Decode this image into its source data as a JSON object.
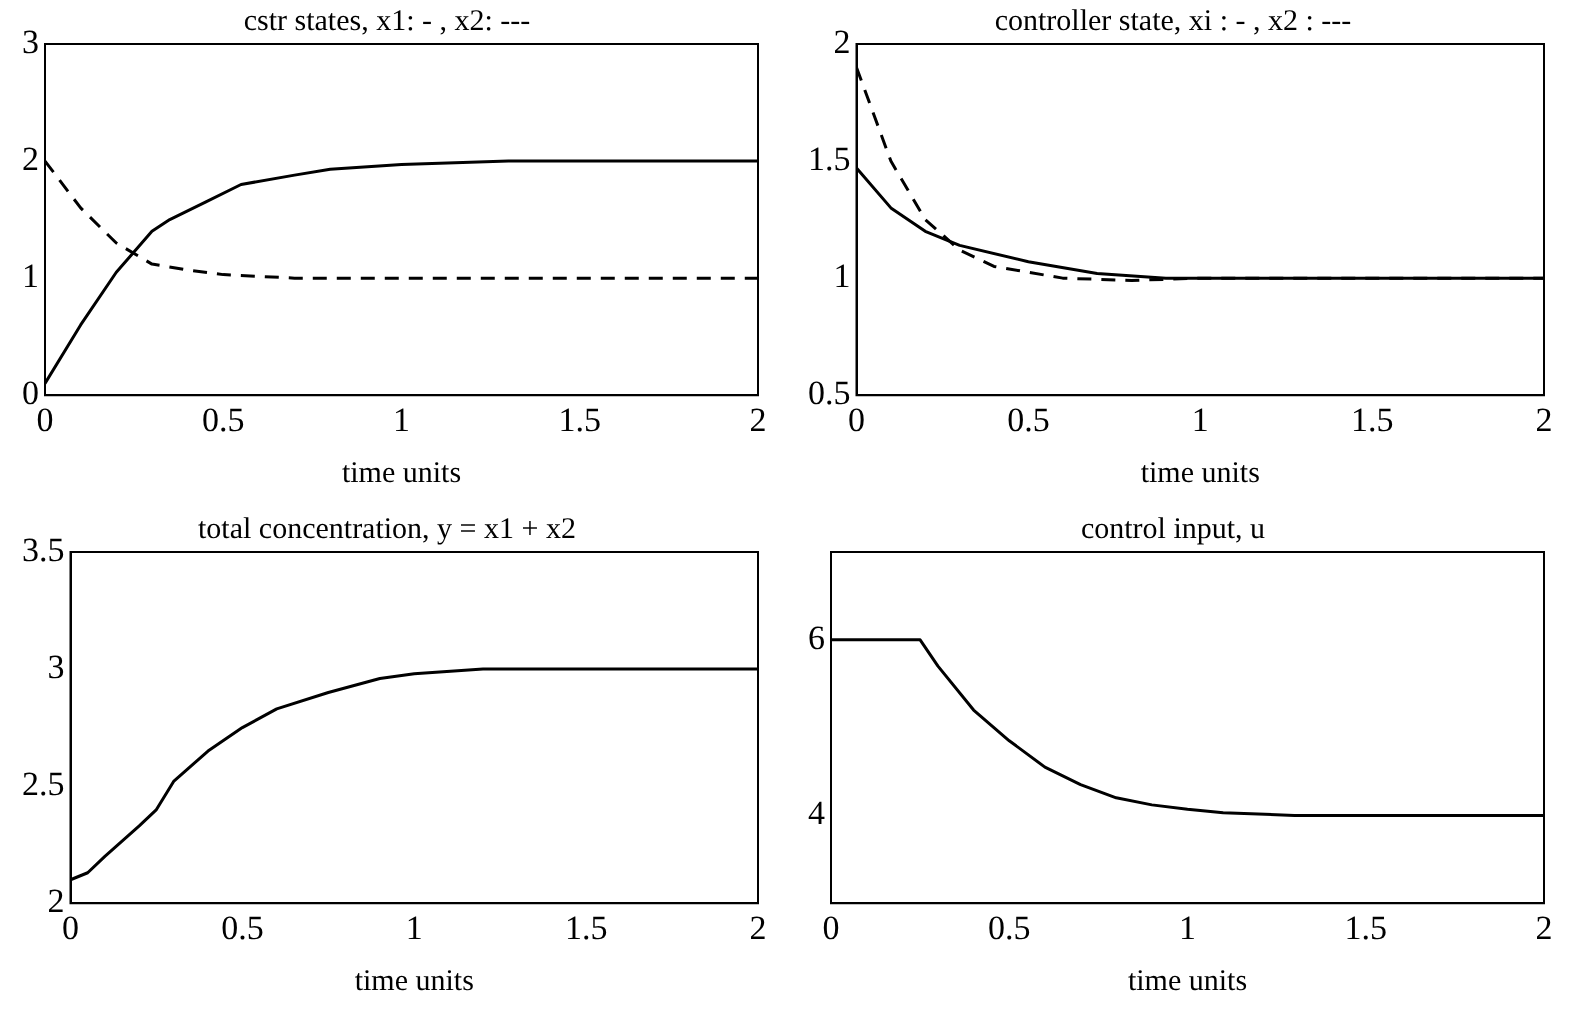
{
  "chart_data": [
    {
      "type": "line",
      "title": "cstr states, x1: - , x2: ---",
      "xlabel": "time units",
      "xlim": [
        0,
        2
      ],
      "xticks": [
        0,
        0.5,
        1,
        1.5,
        2
      ],
      "ylim": [
        0,
        3
      ],
      "yticks": [
        0,
        1,
        2,
        3
      ],
      "legend": false,
      "grid": false,
      "marker": "none",
      "series": [
        {
          "color": "#000000",
          "line_style": "solid",
          "x": [
            0,
            0.1,
            0.2,
            0.3,
            0.35,
            0.45,
            0.55,
            0.7,
            0.8,
            1,
            1.3,
            2
          ],
          "values": [
            0.1,
            0.6,
            1.05,
            1.4,
            1.5,
            1.65,
            1.8,
            1.88,
            1.93,
            1.97,
            2,
            2
          ]
        },
        {
          "color": "#000000",
          "line_style": "dashed",
          "x": [
            0,
            0.1,
            0.2,
            0.3,
            0.4,
            0.5,
            0.7,
            2
          ],
          "values": [
            2,
            1.6,
            1.3,
            1.12,
            1.07,
            1.03,
            1,
            1
          ]
        }
      ]
    },
    {
      "type": "line",
      "title": "controller state, xi : - , x2 : ---",
      "xlabel": "time units",
      "xlim": [
        0,
        2
      ],
      "xticks": [
        0,
        0.5,
        1,
        1.5,
        2
      ],
      "ylim": [
        0.5,
        2
      ],
      "yticks": [
        0.5,
        1,
        1.5,
        2
      ],
      "legend": false,
      "grid": false,
      "marker": "none",
      "series": [
        {
          "color": "#000000",
          "line_style": "solid",
          "x": [
            0,
            0.1,
            0.2,
            0.3,
            0.5,
            0.7,
            0.9,
            2
          ],
          "values": [
            1.47,
            1.3,
            1.2,
            1.14,
            1.07,
            1.02,
            1,
            1
          ]
        },
        {
          "color": "#000000",
          "line_style": "dashed",
          "x": [
            0,
            0.05,
            0.1,
            0.2,
            0.3,
            0.4,
            0.6,
            0.8,
            1,
            2
          ],
          "values": [
            1.9,
            1.7,
            1.5,
            1.25,
            1.12,
            1.05,
            1,
            0.99,
            1,
            1
          ]
        }
      ]
    },
    {
      "type": "line",
      "title": "total concentration, y = x1 + x2",
      "xlabel": "time units",
      "xlim": [
        0,
        2
      ],
      "xticks": [
        0,
        0.5,
        1,
        1.5,
        2
      ],
      "ylim": [
        2,
        3.5
      ],
      "yticks": [
        2,
        2.5,
        3,
        3.5
      ],
      "legend": false,
      "grid": false,
      "marker": "none",
      "series": [
        {
          "color": "#000000",
          "line_style": "solid",
          "x": [
            0,
            0.05,
            0.1,
            0.2,
            0.25,
            0.3,
            0.4,
            0.5,
            0.6,
            0.75,
            0.9,
            1,
            1.2,
            2
          ],
          "values": [
            2.1,
            2.13,
            2.2,
            2.33,
            2.4,
            2.52,
            2.65,
            2.75,
            2.83,
            2.9,
            2.96,
            2.98,
            3,
            3
          ]
        }
      ]
    },
    {
      "type": "line",
      "title": "control input, u",
      "xlabel": "time units",
      "xlim": [
        0,
        2
      ],
      "xticks": [
        0,
        0.5,
        1,
        1.5,
        2
      ],
      "ylim": [
        3,
        7
      ],
      "yticks": [
        4,
        6
      ],
      "legend": false,
      "grid": false,
      "marker": "none",
      "series": [
        {
          "color": "#000000",
          "line_style": "solid",
          "x": [
            0,
            0.25,
            0.3,
            0.4,
            0.5,
            0.6,
            0.7,
            0.8,
            0.9,
            1,
            1.1,
            1.3,
            2
          ],
          "values": [
            6,
            6,
            5.7,
            5.2,
            4.85,
            4.55,
            4.35,
            4.2,
            4.12,
            4.07,
            4.03,
            4,
            4
          ]
        }
      ]
    }
  ]
}
